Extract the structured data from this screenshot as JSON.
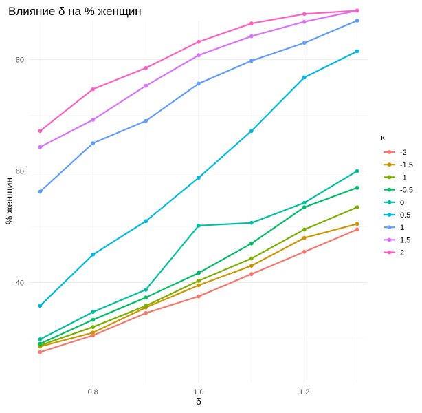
{
  "chart_data": {
    "type": "line",
    "title": "Влияние δ на % женщин",
    "xlabel": "δ",
    "ylabel": "% женщин",
    "xlim": [
      0.68,
      1.32
    ],
    "ylim": [
      22,
      87
    ],
    "x_ticks": [
      0.8,
      1.0,
      1.2
    ],
    "x_tick_labels": [
      "0.8",
      "1.0",
      "1.2"
    ],
    "y_ticks": [
      40,
      60,
      80
    ],
    "y_tick_labels": [
      "40",
      "60",
      "80"
    ],
    "grid": true,
    "legend": {
      "title": "κ",
      "position": "right"
    },
    "x": [
      0.7,
      0.8,
      0.9,
      1.0,
      1.1,
      1.2,
      1.3
    ],
    "series": [
      {
        "name": "-2",
        "color": "#F8766D",
        "values": [
          27.5,
          30.5,
          34.5,
          37.5,
          41.5,
          45.5,
          49.5
        ]
      },
      {
        "name": "-1.5",
        "color": "#CD9600",
        "values": [
          28.5,
          31.0,
          35.5,
          39.5,
          43.0,
          48.0,
          50.5
        ]
      },
      {
        "name": "-1",
        "color": "#7CAE00",
        "values": [
          28.7,
          32.0,
          35.8,
          40.3,
          44.3,
          49.5,
          53.5
        ]
      },
      {
        "name": "-0.5",
        "color": "#00BE67",
        "values": [
          29.0,
          33.3,
          37.3,
          41.7,
          47.0,
          53.5,
          57.0
        ]
      },
      {
        "name": "0",
        "color": "#00BFA0",
        "values": [
          29.8,
          34.7,
          38.7,
          50.2,
          50.7,
          54.3,
          60.0
        ]
      },
      {
        "name": "0.5",
        "color": "#00B9E3",
        "values": [
          35.8,
          45.0,
          51.0,
          58.8,
          67.2,
          76.8,
          81.5
        ]
      },
      {
        "name": "1",
        "color": "#619CFF",
        "values": [
          56.3,
          65.0,
          69.0,
          75.7,
          79.8,
          83.0,
          87.0
        ]
      },
      {
        "name": "1.5",
        "color": "#DB72FB",
        "values": [
          64.3,
          69.2,
          75.3,
          80.8,
          84.2,
          86.8,
          88.8
        ]
      },
      {
        "name": "2",
        "color": "#FF61C3",
        "values": [
          67.2,
          74.7,
          78.5,
          83.2,
          86.5,
          88.2,
          88.8
        ]
      }
    ]
  }
}
